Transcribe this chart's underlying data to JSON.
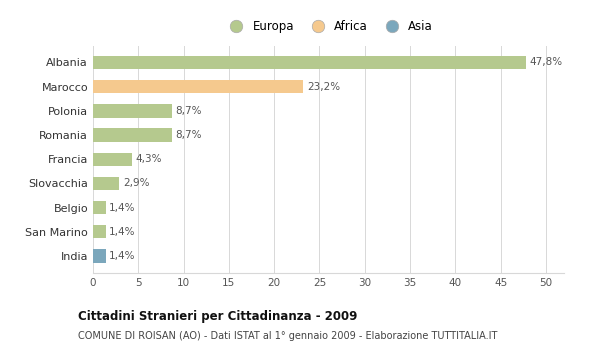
{
  "categories": [
    "Albania",
    "Marocco",
    "Polonia",
    "Romania",
    "Francia",
    "Slovacchia",
    "Belgio",
    "San Marino",
    "India"
  ],
  "values": [
    47.8,
    23.2,
    8.7,
    8.7,
    4.3,
    2.9,
    1.4,
    1.4,
    1.4
  ],
  "labels": [
    "47,8%",
    "23,2%",
    "8,7%",
    "8,7%",
    "4,3%",
    "2,9%",
    "1,4%",
    "1,4%",
    "1,4%"
  ],
  "colors": [
    "#b5c98e",
    "#f5c98e",
    "#b5c98e",
    "#b5c98e",
    "#b5c98e",
    "#b5c98e",
    "#b5c98e",
    "#b5c98e",
    "#7ba7bc"
  ],
  "legend_labels": [
    "Europa",
    "Africa",
    "Asia"
  ],
  "legend_colors": [
    "#b5c98e",
    "#f5c98e",
    "#7ba7bc"
  ],
  "title": "Cittadini Stranieri per Cittadinanza - 2009",
  "subtitle": "COMUNE DI ROISAN (AO) - Dati ISTAT al 1° gennaio 2009 - Elaborazione TUTTITALIA.IT",
  "xlim": [
    0,
    52
  ],
  "xticks": [
    0,
    5,
    10,
    15,
    20,
    25,
    30,
    35,
    40,
    45,
    50
  ],
  "background_color": "#ffffff",
  "grid_color": "#d8d8d8"
}
